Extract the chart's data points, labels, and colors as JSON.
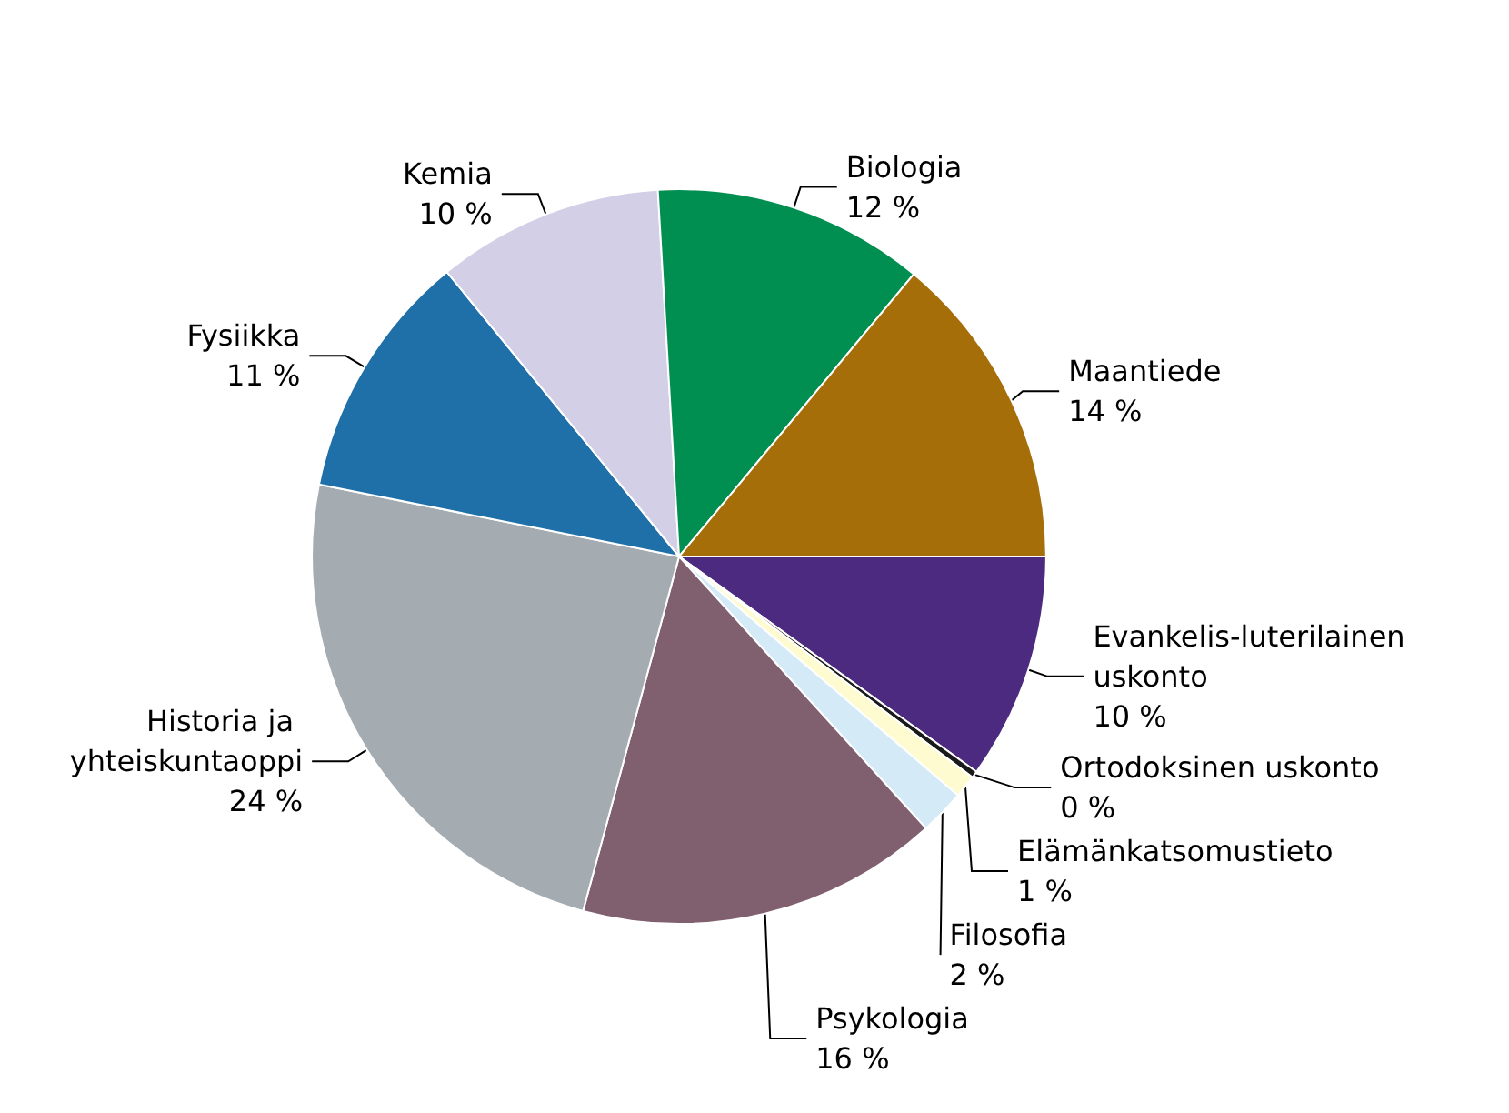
{
  "chart_data": {
    "type": "pie",
    "categories": [
      "Evankelis-luterilainen uskonto",
      "Ortodoksinen uskonto",
      "Elämänkatsomustieto",
      "Filosofia",
      "Psykologia",
      "Historia ja yhteiskuntaoppi",
      "Fysiikka",
      "Kemia",
      "Biologia",
      "Maantiede"
    ],
    "values": [
      10,
      0.3,
      1,
      2,
      16,
      24,
      11,
      10,
      12,
      14
    ],
    "value_labels": [
      "10 %",
      "0 %",
      "1 %",
      "2 %",
      "16 %",
      "24 %",
      "11 %",
      "10 %",
      "12 %",
      "14 %"
    ],
    "colors": [
      "#4b2a7f",
      "#1a1a1a",
      "#fffbd0",
      "#d4eaf7",
      "#80606f",
      "#a4abb1",
      "#1f6fa8",
      "#d3cfe6",
      "#008f50",
      "#a66e08"
    ],
    "legend": false
  }
}
